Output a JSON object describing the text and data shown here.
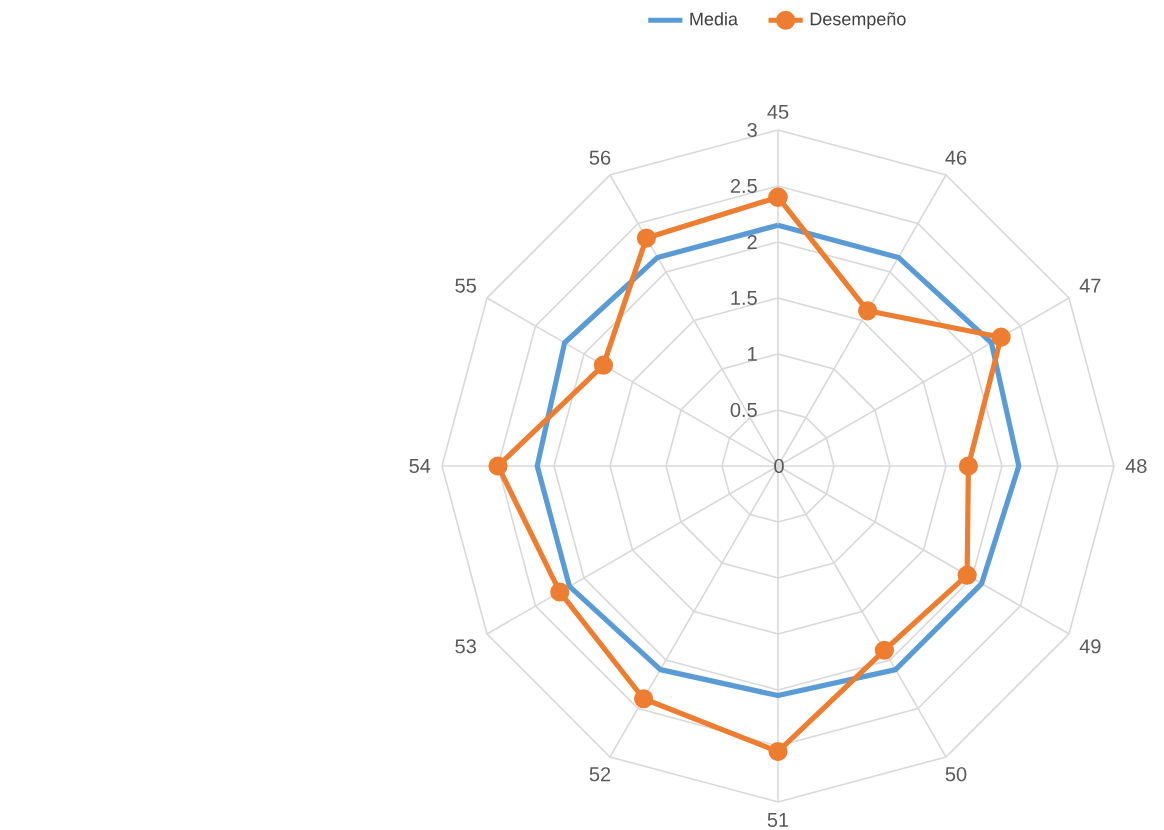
{
  "chart_data": {
    "type": "radar",
    "categories": [
      "45",
      "46",
      "47",
      "48",
      "49",
      "50",
      "51",
      "52",
      "53",
      "54",
      "55",
      "56"
    ],
    "series": [
      {
        "name": "Media",
        "color": "#5b9bd5",
        "marker": "none",
        "values": [
          2.15,
          2.15,
          2.2,
          2.15,
          2.1,
          2.1,
          2.05,
          2.1,
          2.15,
          2.15,
          2.2,
          2.15
        ]
      },
      {
        "name": "Desempeño",
        "color": "#ed7d31",
        "marker": "circle",
        "values": [
          2.4,
          1.6,
          2.3,
          1.7,
          1.95,
          1.9,
          2.55,
          2.4,
          2.25,
          2.5,
          1.8,
          2.35
        ]
      }
    ],
    "ylim": [
      0,
      3
    ],
    "yticks": [
      0,
      0.5,
      1,
      1.5,
      2,
      2.5,
      3
    ],
    "grid": true,
    "legend": "top"
  }
}
